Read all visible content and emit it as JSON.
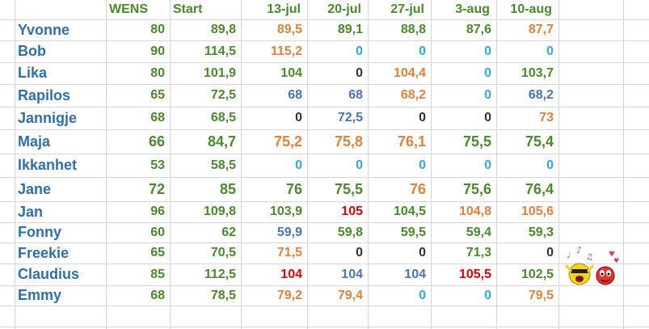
{
  "colors": {
    "green": "#4a8a2a",
    "orange": "#e5813a",
    "blue": "#2aaee6",
    "black": "#333333",
    "red": "#e00000",
    "slate": "#4a74b8",
    "name_blue": "#2f6fb0"
  },
  "headers": [
    "",
    "WENS",
    "Start",
    "13-jul",
    "20-jul",
    "27-jul",
    "3-aug",
    "10-aug"
  ],
  "rows": [
    {
      "name": "Yvonne",
      "wens": "80",
      "start": "89,8",
      "values": [
        {
          "v": "89,5",
          "c": "orange"
        },
        {
          "v": "89,1",
          "c": "green"
        },
        {
          "v": "88,8",
          "c": "green"
        },
        {
          "v": "87,6",
          "c": "green"
        },
        {
          "v": "87,7",
          "c": "orange"
        }
      ]
    },
    {
      "name": "Bob",
      "wens": "90",
      "start": "114,5",
      "values": [
        {
          "v": "115,2",
          "c": "orange"
        },
        {
          "v": "0",
          "c": "blue"
        },
        {
          "v": "0",
          "c": "blue"
        },
        {
          "v": "0",
          "c": "blue"
        },
        {
          "v": "0",
          "c": "blue"
        }
      ]
    },
    {
      "name": "Lika",
      "wens": "80",
      "start": "101,9",
      "values": [
        {
          "v": "104",
          "c": "green"
        },
        {
          "v": "0",
          "c": "black"
        },
        {
          "v": "104,4",
          "c": "orange"
        },
        {
          "v": "0",
          "c": "blue"
        },
        {
          "v": "103,7",
          "c": "green"
        }
      ]
    },
    {
      "name": "Rapilos",
      "wens": "65",
      "start": "72,5",
      "values": [
        {
          "v": "68",
          "c": "slate"
        },
        {
          "v": "68",
          "c": "slate"
        },
        {
          "v": "68,2",
          "c": "orange"
        },
        {
          "v": "0",
          "c": "blue"
        },
        {
          "v": "68,2",
          "c": "slate"
        }
      ]
    },
    {
      "name": "Jannigje",
      "wens": "68",
      "start": "68,5",
      "values": [
        {
          "v": "0",
          "c": "black"
        },
        {
          "v": "72,5",
          "c": "slate"
        },
        {
          "v": "0",
          "c": "black"
        },
        {
          "v": "0",
          "c": "black"
        },
        {
          "v": "73",
          "c": "orange"
        }
      ]
    },
    {
      "name": "Maja",
      "wens": "66",
      "start": "84,7",
      "big": true,
      "values": [
        {
          "v": "75,2",
          "c": "orange"
        },
        {
          "v": "75,8",
          "c": "orange"
        },
        {
          "v": "76,1",
          "c": "orange"
        },
        {
          "v": "75,5",
          "c": "green"
        },
        {
          "v": "75,4",
          "c": "green"
        }
      ]
    },
    {
      "name": "Ikkanhet",
      "wens": "53",
      "start": "58,5",
      "values": [
        {
          "v": "0",
          "c": "blue"
        },
        {
          "v": "0",
          "c": "blue"
        },
        {
          "v": "0",
          "c": "blue"
        },
        {
          "v": "0",
          "c": "blue"
        },
        {
          "v": "0",
          "c": "blue"
        }
      ]
    },
    {
      "name": "Jane",
      "wens": "72",
      "start": "85",
      "big": true,
      "values": [
        {
          "v": "76",
          "c": "green"
        },
        {
          "v": "75,5",
          "c": "green"
        },
        {
          "v": "76",
          "c": "orange"
        },
        {
          "v": "75,6",
          "c": "green"
        },
        {
          "v": "76,4",
          "c": "green"
        }
      ]
    },
    {
      "name": "Jan",
      "wens": "96",
      "start": "109,8",
      "values": [
        {
          "v": "103,9",
          "c": "green"
        },
        {
          "v": "105",
          "c": "red"
        },
        {
          "v": "104,5",
          "c": "green"
        },
        {
          "v": "104,8",
          "c": "orange"
        },
        {
          "v": "105,6",
          "c": "orange"
        }
      ]
    },
    {
      "name": "Fonny",
      "wens": "60",
      "start": "62",
      "values": [
        {
          "v": "59,9",
          "c": "slate"
        },
        {
          "v": "59,8",
          "c": "green"
        },
        {
          "v": "59,5",
          "c": "green"
        },
        {
          "v": "59,4",
          "c": "green"
        },
        {
          "v": "59,3",
          "c": "green"
        }
      ]
    },
    {
      "name": "Freekie",
      "wens": "65",
      "start": "70,5",
      "values": [
        {
          "v": "71,5",
          "c": "orange"
        },
        {
          "v": "0",
          "c": "black"
        },
        {
          "v": "0",
          "c": "black"
        },
        {
          "v": "71,3",
          "c": "green"
        },
        {
          "v": "0",
          "c": "black"
        }
      ]
    },
    {
      "name": "Claudius",
      "wens": "85",
      "start": "112,5",
      "values": [
        {
          "v": "104",
          "c": "red"
        },
        {
          "v": "104",
          "c": "slate"
        },
        {
          "v": "104",
          "c": "slate"
        },
        {
          "v": "105,5",
          "c": "red"
        },
        {
          "v": "102,5",
          "c": "green"
        }
      ]
    },
    {
      "name": "Emmy",
      "wens": "68",
      "start": "78,5",
      "values": [
        {
          "v": "79,2",
          "c": "orange"
        },
        {
          "v": "79,4",
          "c": "orange"
        },
        {
          "v": "0",
          "c": "blue"
        },
        {
          "v": "0",
          "c": "blue"
        },
        {
          "v": "79,5",
          "c": "orange"
        }
      ]
    }
  ]
}
